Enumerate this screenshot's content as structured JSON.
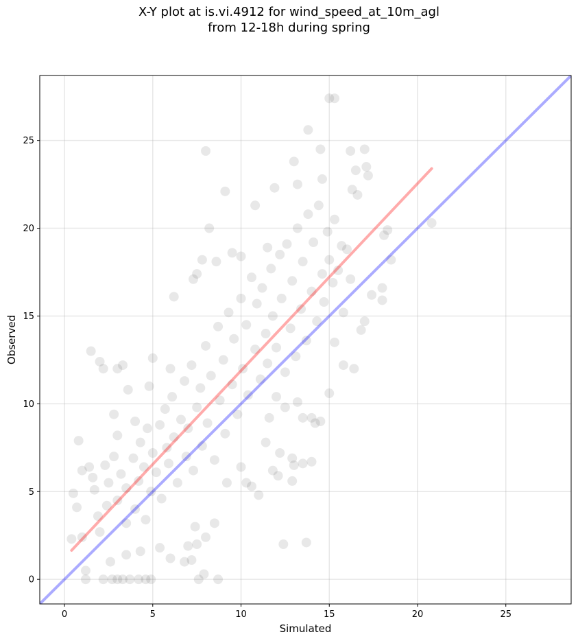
{
  "chart_data": {
    "type": "scatter",
    "title": [
      "X-Y plot at is.vi.4912 for wind_speed_at_10m_agl",
      "from 12-18h during spring"
    ],
    "xlabel": "Simulated",
    "ylabel": "Observed",
    "xlim": [
      -1.4,
      28.7
    ],
    "ylim": [
      -1.4,
      28.7
    ],
    "xticks": [
      0,
      5,
      10,
      15,
      20,
      25
    ],
    "yticks": [
      0,
      5,
      10,
      15,
      20,
      25
    ],
    "grid": true,
    "point_color": "#000000",
    "point_alpha": 0.09,
    "fit_line": {
      "color": "#ff0000",
      "alpha": 0.33,
      "x": [
        0.4,
        20.8
      ],
      "y": [
        1.65,
        23.4
      ]
    },
    "identity_line": {
      "color": "#0000ff",
      "alpha": 0.33,
      "x": [
        -1.4,
        28.7
      ],
      "y": [
        -1.4,
        28.7
      ]
    },
    "points": [
      [
        1.5,
        13.0
      ],
      [
        2.0,
        12.4
      ],
      [
        2.2,
        12.0
      ],
      [
        3.0,
        12.0
      ],
      [
        3.3,
        12.2
      ],
      [
        4.8,
        11.0
      ],
      [
        5.0,
        12.6
      ],
      [
        6.0,
        12.0
      ],
      [
        0.8,
        7.9
      ],
      [
        1.0,
        6.2
      ],
      [
        1.4,
        6.4
      ],
      [
        0.5,
        4.9
      ],
      [
        0.7,
        4.1
      ],
      [
        0.4,
        2.3
      ],
      [
        1.0,
        2.4
      ],
      [
        1.2,
        0.0
      ],
      [
        2.2,
        0.0
      ],
      [
        2.7,
        0.0
      ],
      [
        3.0,
        0.0
      ],
      [
        3.3,
        0.0
      ],
      [
        3.7,
        0.0
      ],
      [
        4.2,
        0.0
      ],
      [
        4.6,
        0.0
      ],
      [
        4.9,
        0.0
      ],
      [
        1.2,
        0.5
      ],
      [
        2.6,
        1.0
      ],
      [
        3.5,
        1.4
      ],
      [
        4.3,
        1.6
      ],
      [
        5.4,
        1.8
      ],
      [
        6.0,
        1.2
      ],
      [
        7.0,
        1.9
      ],
      [
        7.5,
        2.0
      ],
      [
        7.6,
        0.0
      ],
      [
        7.9,
        0.3
      ],
      [
        8.0,
        2.4
      ],
      [
        8.7,
        0.0
      ],
      [
        8.5,
        3.2
      ],
      [
        7.4,
        3.0
      ],
      [
        7.2,
        1.1
      ],
      [
        6.8,
        1.0
      ],
      [
        12.4,
        2.0
      ],
      [
        13.7,
        2.1
      ],
      [
        11.0,
        4.8
      ],
      [
        11.8,
        6.2
      ],
      [
        12.1,
        5.9
      ],
      [
        12.9,
        5.6
      ],
      [
        13.0,
        6.5
      ],
      [
        13.5,
        6.6
      ],
      [
        14.0,
        6.7
      ],
      [
        12.9,
        6.9
      ],
      [
        12.2,
        7.2
      ],
      [
        11.4,
        7.8
      ],
      [
        10.3,
        5.5
      ],
      [
        10.6,
        5.3
      ],
      [
        10.0,
        6.4
      ],
      [
        9.2,
        5.5
      ],
      [
        8.0,
        24.4
      ],
      [
        9.1,
        22.1
      ],
      [
        8.2,
        20.0
      ],
      [
        10.8,
        21.3
      ],
      [
        11.9,
        22.3
      ],
      [
        13.0,
        23.8
      ],
      [
        13.2,
        22.5
      ],
      [
        13.8,
        25.6
      ],
      [
        14.5,
        24.5
      ],
      [
        14.6,
        22.8
      ],
      [
        15.0,
        27.4
      ],
      [
        15.3,
        27.4
      ],
      [
        16.2,
        24.4
      ],
      [
        16.5,
        23.3
      ],
      [
        17.0,
        24.5
      ],
      [
        17.1,
        23.5
      ],
      [
        16.3,
        22.2
      ],
      [
        16.6,
        21.9
      ],
      [
        17.2,
        23.0
      ],
      [
        20.8,
        20.3
      ],
      [
        18.3,
        19.9
      ],
      [
        18.1,
        19.6
      ],
      [
        18.5,
        18.2
      ],
      [
        18.0,
        16.6
      ],
      [
        18.0,
        15.9
      ],
      [
        17.4,
        16.2
      ],
      [
        17.0,
        14.7
      ],
      [
        16.8,
        14.2
      ],
      [
        16.4,
        12.0
      ],
      [
        15.8,
        12.2
      ],
      [
        15.3,
        13.5
      ],
      [
        15.0,
        10.6
      ],
      [
        14.5,
        9.0
      ],
      [
        14.2,
        8.9
      ],
      [
        14.0,
        9.2
      ],
      [
        13.5,
        9.2
      ],
      [
        13.2,
        10.1
      ],
      [
        12.5,
        9.8
      ],
      [
        12.0,
        10.4
      ],
      [
        11.6,
        9.2
      ],
      [
        6.2,
        16.1
      ],
      [
        7.3,
        17.1
      ],
      [
        7.8,
        18.2
      ],
      [
        7.5,
        17.4
      ],
      [
        8.6,
        18.1
      ],
      [
        9.5,
        18.6
      ],
      [
        10.0,
        18.4
      ],
      [
        11.5,
        18.9
      ],
      [
        1.7,
        5.1
      ],
      [
        1.9,
        3.6
      ],
      [
        2.4,
        4.2
      ],
      [
        2.0,
        2.7
      ],
      [
        1.6,
        5.8
      ],
      [
        2.3,
        6.5
      ],
      [
        2.8,
        7.0
      ],
      [
        2.5,
        5.5
      ],
      [
        3.0,
        4.5
      ],
      [
        3.2,
        6.0
      ],
      [
        3.5,
        5.2
      ],
      [
        3.0,
        8.2
      ],
      [
        2.8,
        9.4
      ],
      [
        3.6,
        10.8
      ],
      [
        4.0,
        9.0
      ],
      [
        3.5,
        3.2
      ],
      [
        3.9,
        6.9
      ],
      [
        4.2,
        5.6
      ],
      [
        4.0,
        4.0
      ],
      [
        4.5,
        6.4
      ],
      [
        4.3,
        7.8
      ],
      [
        4.7,
        8.6
      ],
      [
        4.9,
        5.0
      ],
      [
        4.6,
        3.4
      ],
      [
        5.0,
        7.2
      ],
      [
        5.2,
        6.1
      ],
      [
        5.4,
        8.8
      ],
      [
        5.5,
        4.6
      ],
      [
        5.7,
        9.7
      ],
      [
        5.8,
        7.5
      ],
      [
        5.9,
        6.6
      ],
      [
        6.1,
        10.4
      ],
      [
        6.2,
        8.1
      ],
      [
        6.4,
        5.5
      ],
      [
        6.6,
        9.1
      ],
      [
        6.8,
        11.3
      ],
      [
        6.9,
        7.0
      ],
      [
        7.0,
        8.6
      ],
      [
        7.2,
        12.2
      ],
      [
        7.3,
        6.2
      ],
      [
        7.5,
        9.8
      ],
      [
        7.7,
        10.9
      ],
      [
        7.8,
        7.6
      ],
      [
        8.0,
        13.3
      ],
      [
        8.1,
        8.9
      ],
      [
        8.3,
        11.6
      ],
      [
        8.5,
        6.8
      ],
      [
        8.7,
        14.4
      ],
      [
        8.8,
        10.2
      ],
      [
        9.0,
        12.5
      ],
      [
        9.1,
        8.3
      ],
      [
        9.3,
        15.2
      ],
      [
        9.5,
        11.1
      ],
      [
        9.6,
        13.7
      ],
      [
        9.8,
        9.4
      ],
      [
        10.0,
        16.0
      ],
      [
        10.1,
        12.0
      ],
      [
        10.3,
        14.5
      ],
      [
        10.4,
        10.5
      ],
      [
        10.6,
        17.2
      ],
      [
        10.8,
        13.1
      ],
      [
        10.9,
        15.7
      ],
      [
        11.1,
        11.4
      ],
      [
        11.2,
        16.6
      ],
      [
        11.4,
        14.0
      ],
      [
        11.5,
        12.3
      ],
      [
        11.7,
        17.7
      ],
      [
        11.8,
        15.0
      ],
      [
        12.0,
        13.2
      ],
      [
        12.2,
        18.5
      ],
      [
        12.3,
        16.0
      ],
      [
        12.5,
        11.8
      ],
      [
        12.6,
        19.1
      ],
      [
        12.8,
        14.3
      ],
      [
        12.9,
        17.0
      ],
      [
        13.1,
        12.7
      ],
      [
        13.2,
        20.0
      ],
      [
        13.4,
        15.4
      ],
      [
        13.5,
        18.1
      ],
      [
        13.7,
        13.6
      ],
      [
        13.8,
        20.8
      ],
      [
        14.0,
        16.4
      ],
      [
        14.1,
        19.2
      ],
      [
        14.3,
        14.7
      ],
      [
        14.4,
        21.3
      ],
      [
        14.6,
        17.4
      ],
      [
        14.7,
        15.8
      ],
      [
        14.9,
        19.8
      ],
      [
        15.0,
        18.2
      ],
      [
        15.2,
        16.9
      ],
      [
        15.3,
        20.5
      ],
      [
        15.5,
        17.6
      ],
      [
        15.7,
        19.0
      ],
      [
        15.8,
        15.2
      ],
      [
        16.0,
        18.8
      ],
      [
        16.2,
        17.1
      ]
    ]
  }
}
